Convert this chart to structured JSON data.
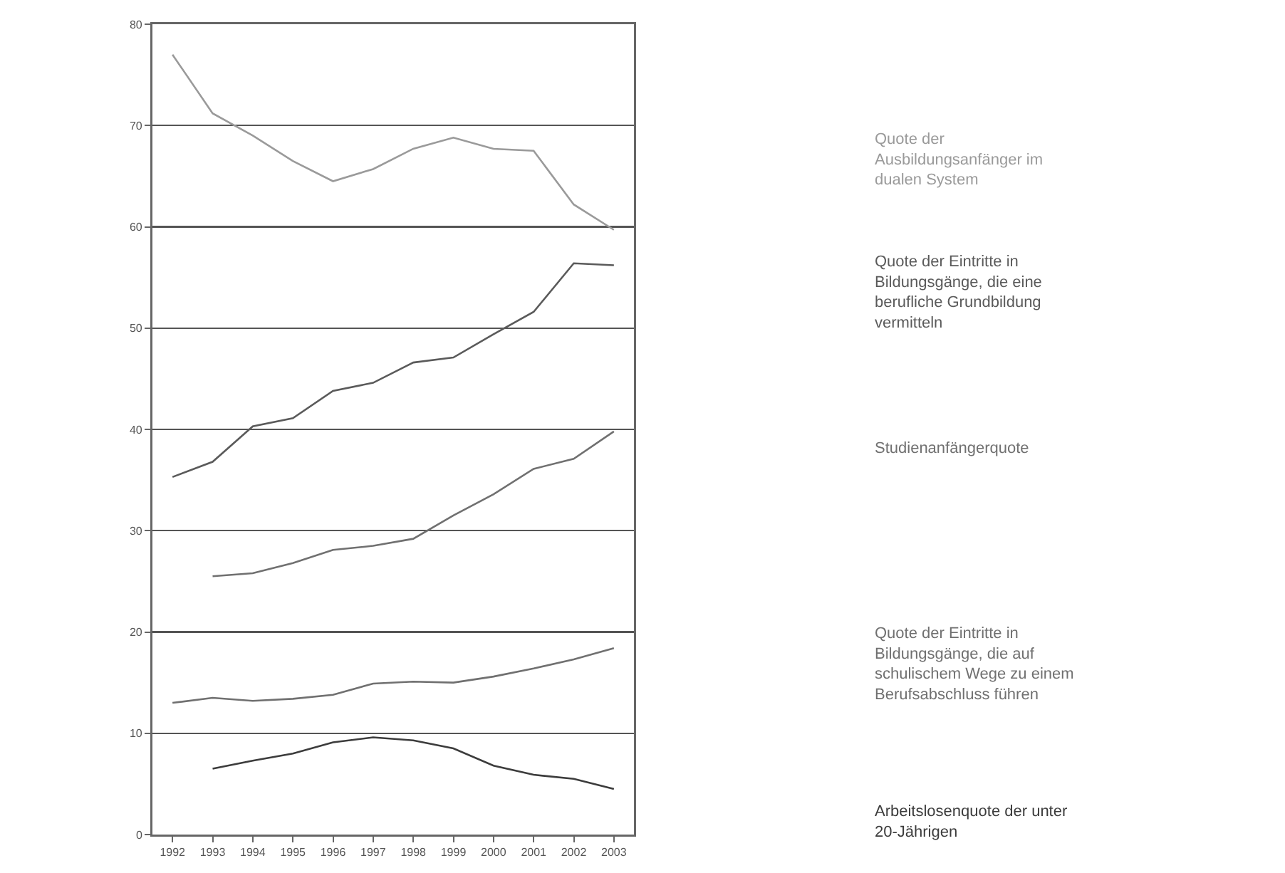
{
  "chart_data": {
    "type": "line",
    "categories": [
      "1992",
      "1993",
      "1994",
      "1995",
      "1996",
      "1997",
      "1998",
      "1999",
      "2000",
      "2001",
      "2002",
      "2003"
    ],
    "series": [
      {
        "name": "Quote der Ausbildungsanfänger im dualen System",
        "color": "#9a9a9a",
        "values": [
          77,
          71.2,
          69,
          66.5,
          64.5,
          65.7,
          67.7,
          68.8,
          67.7,
          67.5,
          62.2,
          59.7
        ]
      },
      {
        "name": "Quote der Eintritte in Bildungsgänge, die eine berufliche Grundbildung vermitteln",
        "color": "#5a5a5a",
        "values": [
          35.3,
          36.8,
          40.3,
          41.1,
          43.8,
          44.6,
          46.6,
          47.1,
          49.4,
          51.6,
          56.4,
          56.2
        ]
      },
      {
        "name": "Studienanfängerquote",
        "color": "#707070",
        "values": [
          null,
          25.5,
          25.8,
          26.8,
          28.1,
          28.5,
          29.2,
          31.5,
          33.6,
          36.1,
          37.1,
          39.8
        ]
      },
      {
        "name": "Quote der Eintritte in Bildungsgänge, die auf schulischem Wege zu einem Berufsabschluss führen",
        "color": "#707070",
        "values": [
          13,
          13.5,
          13.2,
          13.4,
          13.8,
          14.9,
          15.1,
          15,
          15.6,
          16.4,
          17.3,
          18.4
        ]
      },
      {
        "name": "Arbeitslosenquote der unter 20-Jährigen",
        "color": "#3c3c3c",
        "values": [
          null,
          6.5,
          7.3,
          8,
          9.1,
          9.6,
          9.3,
          8.5,
          6.8,
          5.9,
          5.5,
          4.5
        ]
      }
    ],
    "ylim": [
      0,
      80
    ],
    "yticks": [
      0,
      10,
      20,
      30,
      40,
      50,
      60,
      70,
      80
    ],
    "grid": "y",
    "legend": false,
    "marker": "none",
    "line_style": "solid"
  }
}
